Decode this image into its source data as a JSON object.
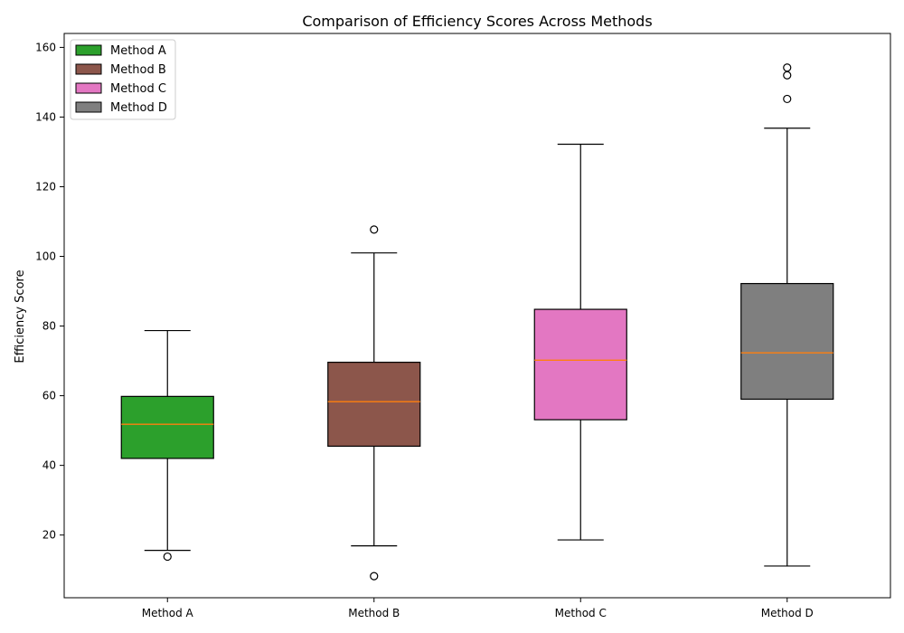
{
  "chart_data": {
    "type": "box",
    "title": "Comparison of Efficiency Scores Across Methods",
    "xlabel": "",
    "ylabel": "Efficiency Score",
    "ylim": [
      2,
      164
    ],
    "yticks": [
      20,
      40,
      60,
      80,
      100,
      120,
      140,
      160
    ],
    "grid": false,
    "legend_position": "top-left",
    "categories": [
      "Method A",
      "Method B",
      "Method C",
      "Method D"
    ],
    "series": [
      {
        "name": "Method A",
        "color": "#2ca02c",
        "whisker_low": 15.6,
        "q1": 42.0,
        "median": 51.8,
        "q3": 59.8,
        "whisker_high": 78.7,
        "outliers": [
          13.8
        ]
      },
      {
        "name": "Method B",
        "color": "#8c564b",
        "whisker_low": 16.9,
        "q1": 45.5,
        "median": 58.3,
        "q3": 69.6,
        "whisker_high": 101.0,
        "outliers": [
          8.2,
          107.7
        ]
      },
      {
        "name": "Method C",
        "color": "#e377c2",
        "whisker_low": 18.6,
        "q1": 53.1,
        "median": 70.2,
        "q3": 84.8,
        "whisker_high": 132.2,
        "outliers": []
      },
      {
        "name": "Method D",
        "color": "#7f7f7f",
        "whisker_low": 11.1,
        "q1": 59.0,
        "median": 72.3,
        "q3": 92.2,
        "whisker_high": 136.8,
        "outliers": [
          145.2,
          152.0,
          154.2
        ]
      }
    ],
    "median_color": "#ff7f0e"
  }
}
